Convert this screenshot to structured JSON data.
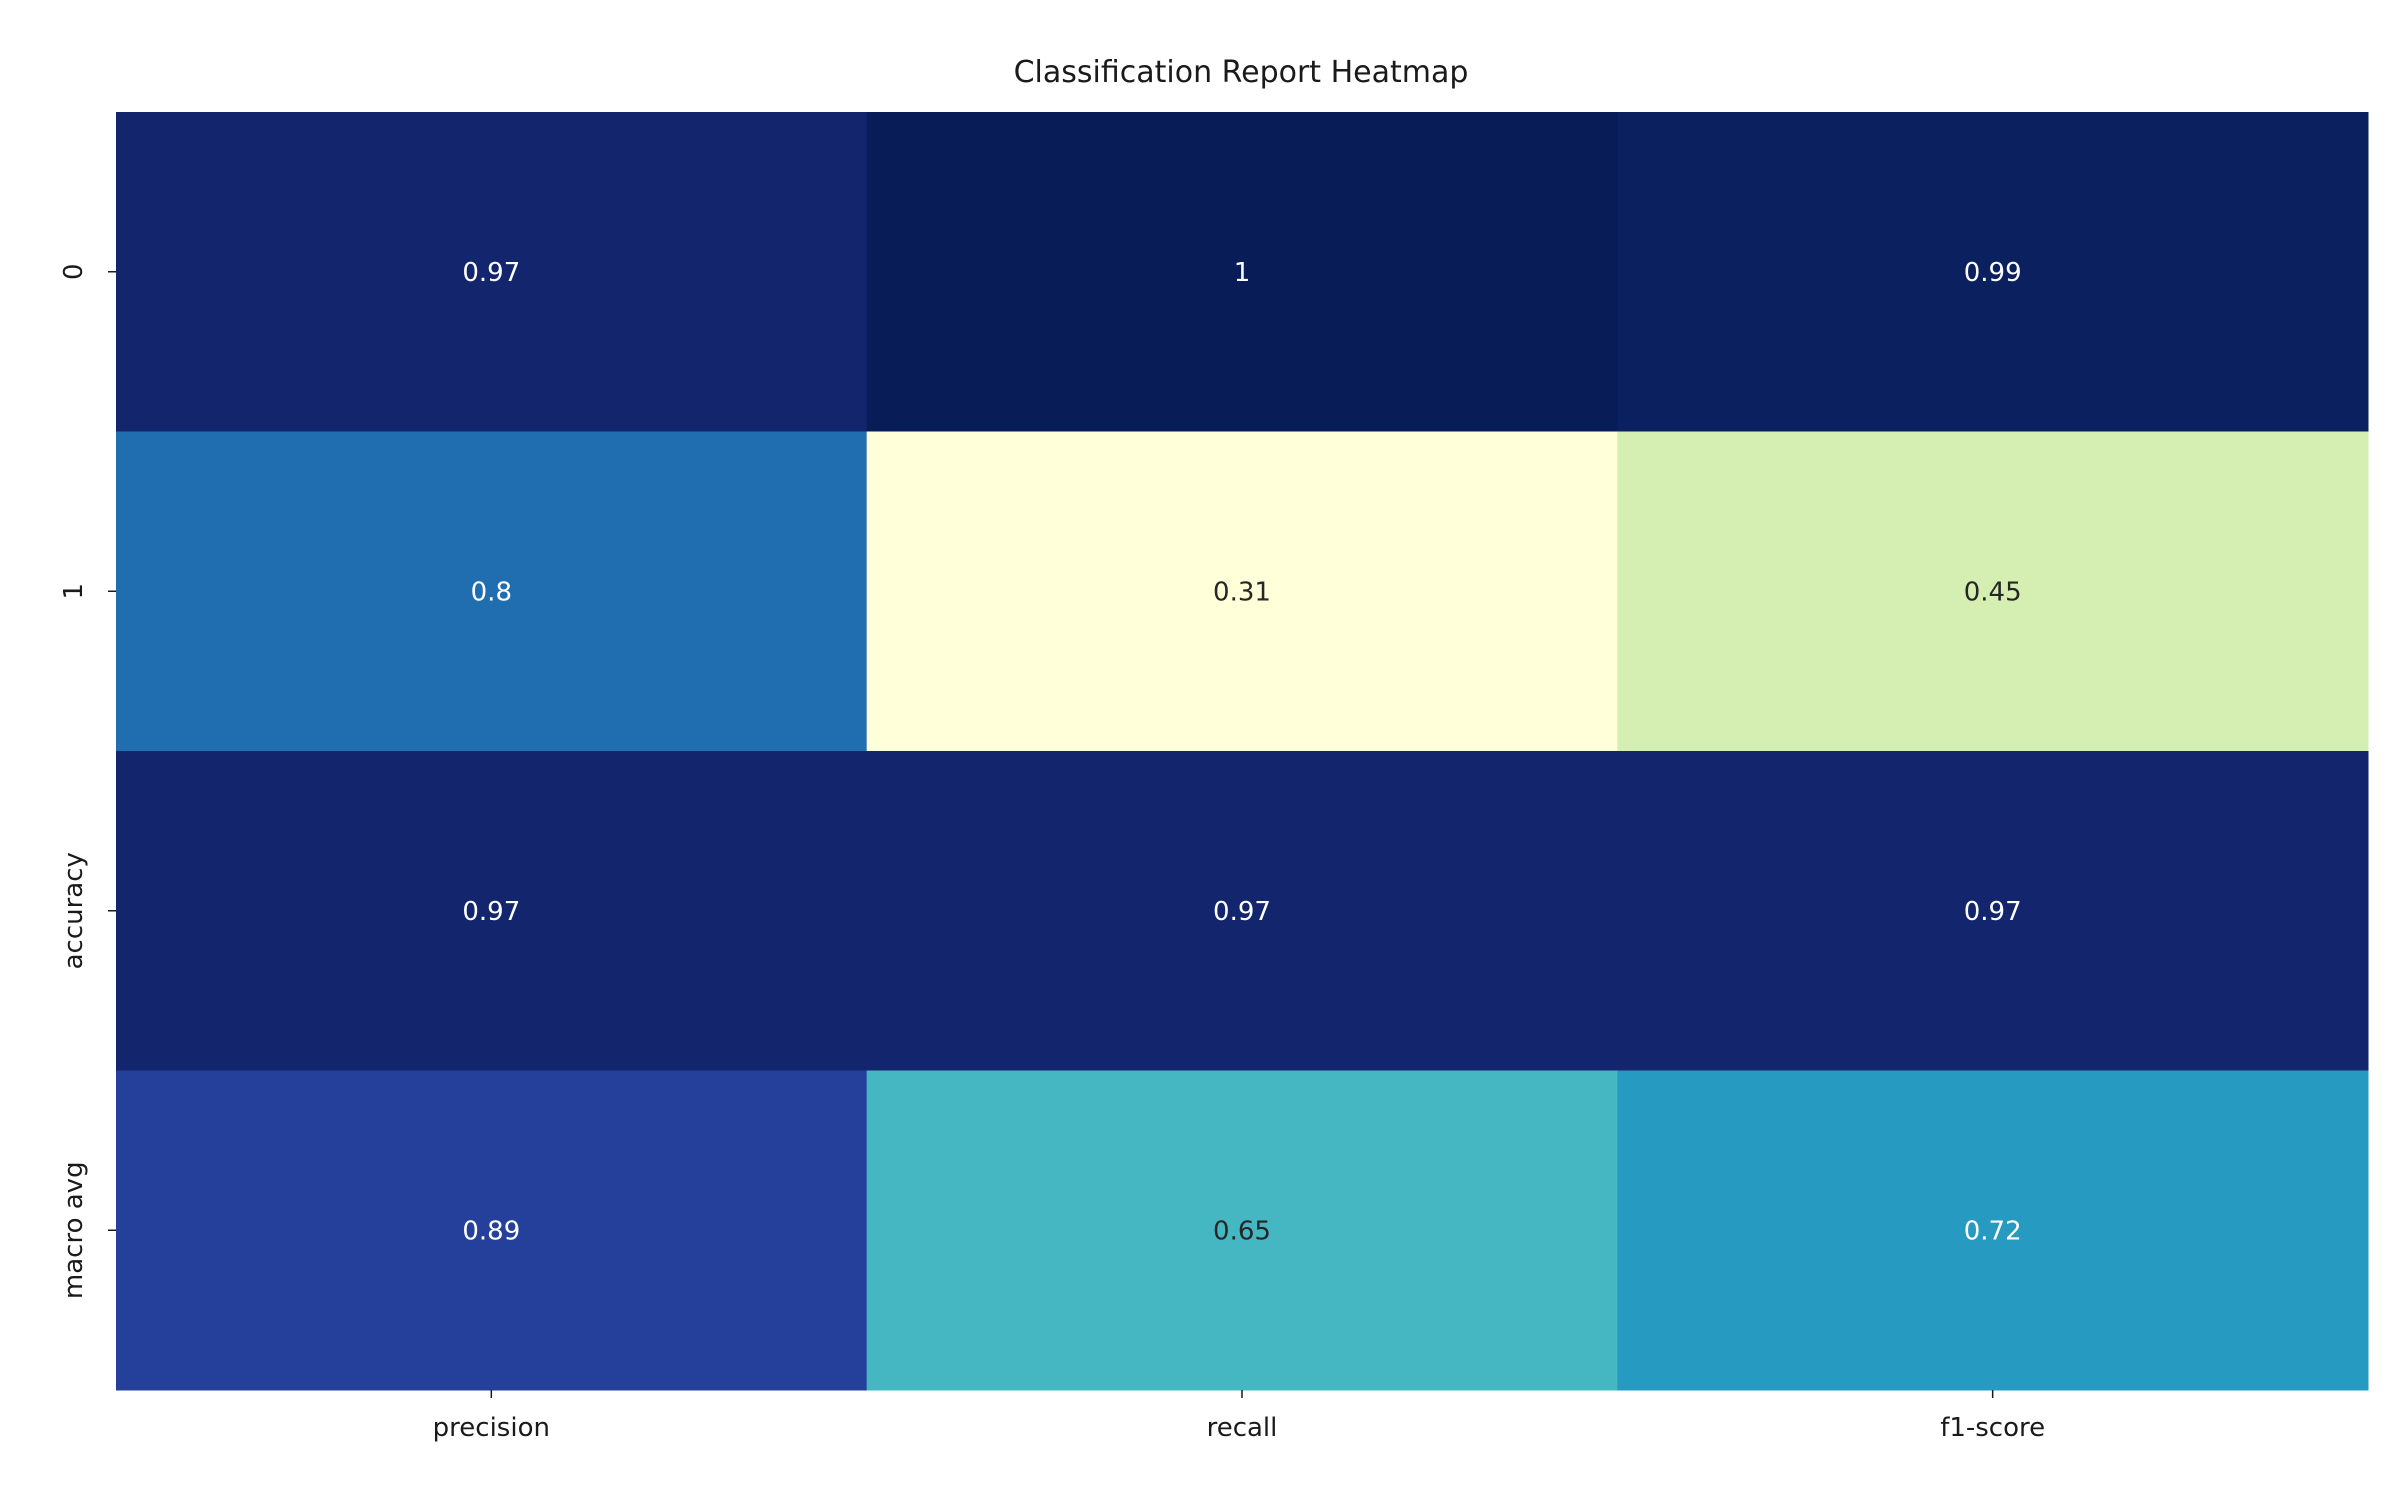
{
  "chart_data": {
    "type": "heatmap",
    "title": "Classification Report Heatmap",
    "xlabel": "",
    "ylabel": "",
    "columns": [
      "precision",
      "recall",
      "f1-score"
    ],
    "rows": [
      "0",
      "1",
      "accuracy",
      "macro avg"
    ],
    "values": [
      [
        0.97,
        1,
        0.99
      ],
      [
        0.8,
        0.31,
        0.45
      ],
      [
        0.97,
        0.97,
        0.97
      ],
      [
        0.89,
        0.65,
        0.72
      ]
    ],
    "value_labels": [
      [
        "0.97",
        "1",
        "0.99"
      ],
      [
        "0.8",
        "0.31",
        "0.45"
      ],
      [
        "0.97",
        "0.97",
        "0.97"
      ],
      [
        "0.89",
        "0.65",
        "0.72"
      ]
    ],
    "colormap": "YlGnBu",
    "color_range": [
      0.31,
      1
    ],
    "colorbar": false,
    "grid": false
  }
}
